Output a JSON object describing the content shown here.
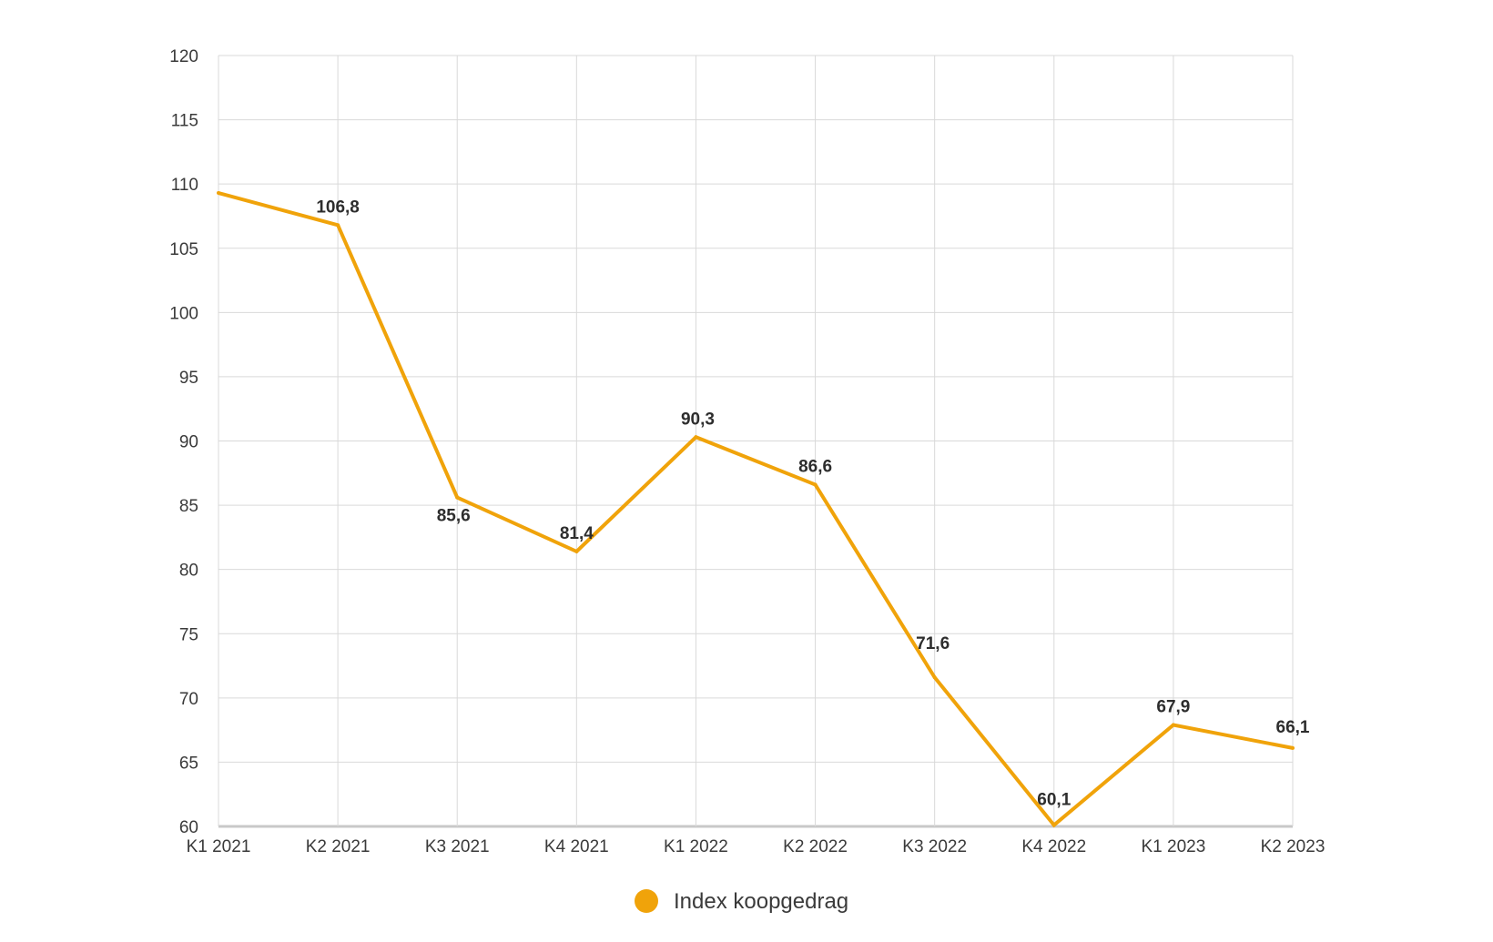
{
  "chart_data": {
    "type": "line",
    "categories": [
      "K1 2021",
      "K2 2021",
      "K3 2021",
      "K4 2021",
      "K1 2022",
      "K2 2022",
      "K3 2022",
      "K4 2022",
      "K1 2023",
      "K2 2023"
    ],
    "series": [
      {
        "name": "Index koopgedrag",
        "values": [
          109.3,
          106.8,
          85.6,
          81.4,
          90.3,
          86.6,
          71.6,
          60.1,
          67.9,
          66.1
        ],
        "data_labels": [
          "",
          "106,8",
          "85,6",
          "81,4",
          "90,3",
          "86,6",
          "71,6",
          "60,1",
          "67,9",
          "66,1"
        ],
        "color": "#f0a30a"
      }
    ],
    "y_ticks": [
      60,
      65,
      70,
      75,
      80,
      85,
      90,
      95,
      100,
      105,
      110,
      115,
      120
    ],
    "y_tick_labels": [
      "60",
      "65",
      "70",
      "75",
      "80",
      "85",
      "90",
      "95",
      "100",
      "105",
      "110",
      "115",
      "120"
    ],
    "ylim": [
      60,
      120
    ],
    "grid": true,
    "legend_position": "bottom-center",
    "title": "",
    "xlabel": "",
    "ylabel": ""
  },
  "colors": {
    "line": "#f0a30a",
    "grid": "#d9d9d9",
    "axis": "#c8c8c8",
    "text": "#3a3a3a"
  }
}
